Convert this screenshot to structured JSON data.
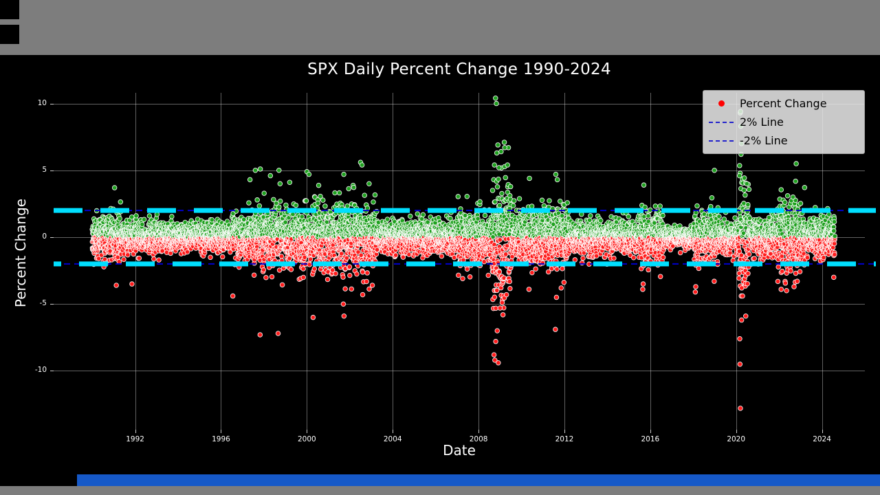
{
  "desktop": {
    "background": "#7d7d7d",
    "icon_color": "#000000",
    "taskbar_color": "#1659c8"
  },
  "chart_data": {
    "type": "scatter",
    "title": "SPX Daily Percent Change 1990-2024",
    "xlabel": "Date",
    "ylabel": "Percent Change",
    "xlim": [
      1988.2,
      2026.0
    ],
    "ylim": [
      -14.4,
      10.8
    ],
    "x_ticks": [
      1992,
      1996,
      2000,
      2004,
      2008,
      2012,
      2016,
      2020,
      2024
    ],
    "y_ticks": [
      -10,
      -5,
      0,
      5,
      10
    ],
    "grid": true,
    "fig_bg": "#000000",
    "plot_bg": "#000000",
    "text_color": "#ffffff",
    "grid_color": "rgba(255,255,255,0.38)",
    "tick_color": "rgba(255,255,255,0.8)",
    "reference_lines": [
      {
        "label": "2% Line",
        "value": 2,
        "inner_color": "#0000cd",
        "outer_color": "#00dfff"
      },
      {
        "label": "-2% Line",
        "value": -2,
        "inner_color": "#0000cd",
        "outer_color": "#00dfff"
      }
    ],
    "legend": {
      "position": "upper right",
      "bg": "rgba(236,236,236,0.85)",
      "entries": [
        {
          "label": "Percent Change",
          "marker": "dot",
          "color": "#ff0000"
        },
        {
          "label": "2% Line",
          "marker": "dashed",
          "color": "#2222cc"
        },
        {
          "label": "-2% Line",
          "marker": "dashed",
          "color": "#2222cc"
        }
      ]
    },
    "series": {
      "name": "Percent Change",
      "pos_color": "#1fa11f",
      "neg_color": "#ff1c1c",
      "edge_color": "rgba(255,255,255,0.9)",
      "marker_radius": 3.3,
      "generator": {
        "seed": 1337,
        "points_per_year": 240,
        "start": 1990.0,
        "end": 2024.6,
        "clip_sigma": 3.1,
        "eras": [
          [
            1990.0,
            1991.5,
            0.85
          ],
          [
            1991.5,
            1996.5,
            0.55
          ],
          [
            1996.5,
            1997.5,
            0.85
          ],
          [
            1997.5,
            2000.0,
            1.15
          ],
          [
            2000.0,
            2003.2,
            1.25
          ],
          [
            2003.2,
            2007.0,
            0.62
          ],
          [
            2007.0,
            2008.6,
            1.1
          ],
          [
            2008.6,
            2009.5,
            2.3
          ],
          [
            2009.5,
            2010.3,
            0.95
          ],
          [
            2010.3,
            2012.2,
            1.15
          ],
          [
            2012.2,
            2015.5,
            0.65
          ],
          [
            2015.5,
            2016.6,
            0.95
          ],
          [
            2016.6,
            2018.0,
            0.42
          ],
          [
            2018.0,
            2019.2,
            0.95
          ],
          [
            2019.2,
            2020.1,
            0.6
          ],
          [
            2020.1,
            2020.6,
            2.0
          ],
          [
            2020.6,
            2021.9,
            0.75
          ],
          [
            2021.9,
            2023.2,
            1.35
          ],
          [
            2023.2,
            2024.6,
            0.75
          ]
        ]
      },
      "outliers": [
        [
          1991.04,
          3.7
        ],
        [
          1991.12,
          -3.6
        ],
        [
          1991.85,
          -3.5
        ],
        [
          1996.55,
          -4.4
        ],
        [
          1997.35,
          4.3
        ],
        [
          1997.6,
          5.0
        ],
        [
          1997.82,
          -7.3
        ],
        [
          1997.83,
          5.1
        ],
        [
          1998.3,
          4.6
        ],
        [
          1998.66,
          -7.2
        ],
        [
          1998.7,
          5.0
        ],
        [
          1998.75,
          4.0
        ],
        [
          1999.2,
          4.1
        ],
        [
          2000.0,
          4.9
        ],
        [
          2000.1,
          4.7
        ],
        [
          2000.29,
          -6.0
        ],
        [
          2001.7,
          -5.0
        ],
        [
          2001.72,
          4.7
        ],
        [
          2001.73,
          -5.9
        ],
        [
          2002.5,
          5.6
        ],
        [
          2002.57,
          5.4
        ],
        [
          2002.6,
          -4.3
        ],
        [
          2002.9,
          4.0
        ],
        [
          2003.05,
          -3.6
        ],
        [
          2008.72,
          -8.8
        ],
        [
          2008.74,
          5.4
        ],
        [
          2008.76,
          -9.2
        ],
        [
          2008.79,
          10.4
        ],
        [
          2008.8,
          -7.8
        ],
        [
          2008.83,
          10.0
        ],
        [
          2008.85,
          6.3
        ],
        [
          2008.87,
          -7.0
        ],
        [
          2008.9,
          6.9
        ],
        [
          2008.92,
          -9.4
        ],
        [
          2008.95,
          5.2
        ],
        [
          2009.0,
          -5.3
        ],
        [
          2009.05,
          6.4
        ],
        [
          2009.1,
          -4.9
        ],
        [
          2009.2,
          7.1
        ],
        [
          2009.22,
          6.7
        ],
        [
          2009.3,
          -4.3
        ],
        [
          2009.35,
          5.4
        ],
        [
          2010.35,
          -3.9
        ],
        [
          2010.37,
          4.4
        ],
        [
          2011.58,
          -6.9
        ],
        [
          2011.6,
          4.7
        ],
        [
          2011.63,
          -4.5
        ],
        [
          2011.67,
          4.3
        ],
        [
          2011.85,
          -3.8
        ],
        [
          2015.65,
          -3.9
        ],
        [
          2015.67,
          -3.5
        ],
        [
          2015.7,
          3.9
        ],
        [
          2018.1,
          -4.1
        ],
        [
          2018.12,
          -3.7
        ],
        [
          2018.98,
          -3.3
        ],
        [
          2018.99,
          5.0
        ],
        [
          2020.16,
          4.6
        ],
        [
          2020.17,
          -7.6
        ],
        [
          2020.18,
          -9.5
        ],
        [
          2020.19,
          9.3
        ],
        [
          2020.2,
          -12.8
        ],
        [
          2020.21,
          9.4
        ],
        [
          2020.22,
          8.3
        ],
        [
          2020.23,
          6.2
        ],
        [
          2020.24,
          -4.4
        ],
        [
          2020.25,
          7.0
        ],
        [
          2020.26,
          -3.8
        ],
        [
          2020.3,
          -4.4
        ],
        [
          2020.45,
          -5.9
        ],
        [
          2020.5,
          4.0
        ],
        [
          2022.1,
          -3.9
        ],
        [
          2022.35,
          -4.0
        ],
        [
          2022.4,
          3.1
        ],
        [
          2022.65,
          3.0
        ],
        [
          2022.7,
          -3.7
        ],
        [
          2022.8,
          5.5
        ],
        [
          2022.85,
          -3.3
        ],
        [
          2024.55,
          -3.0
        ]
      ]
    }
  }
}
